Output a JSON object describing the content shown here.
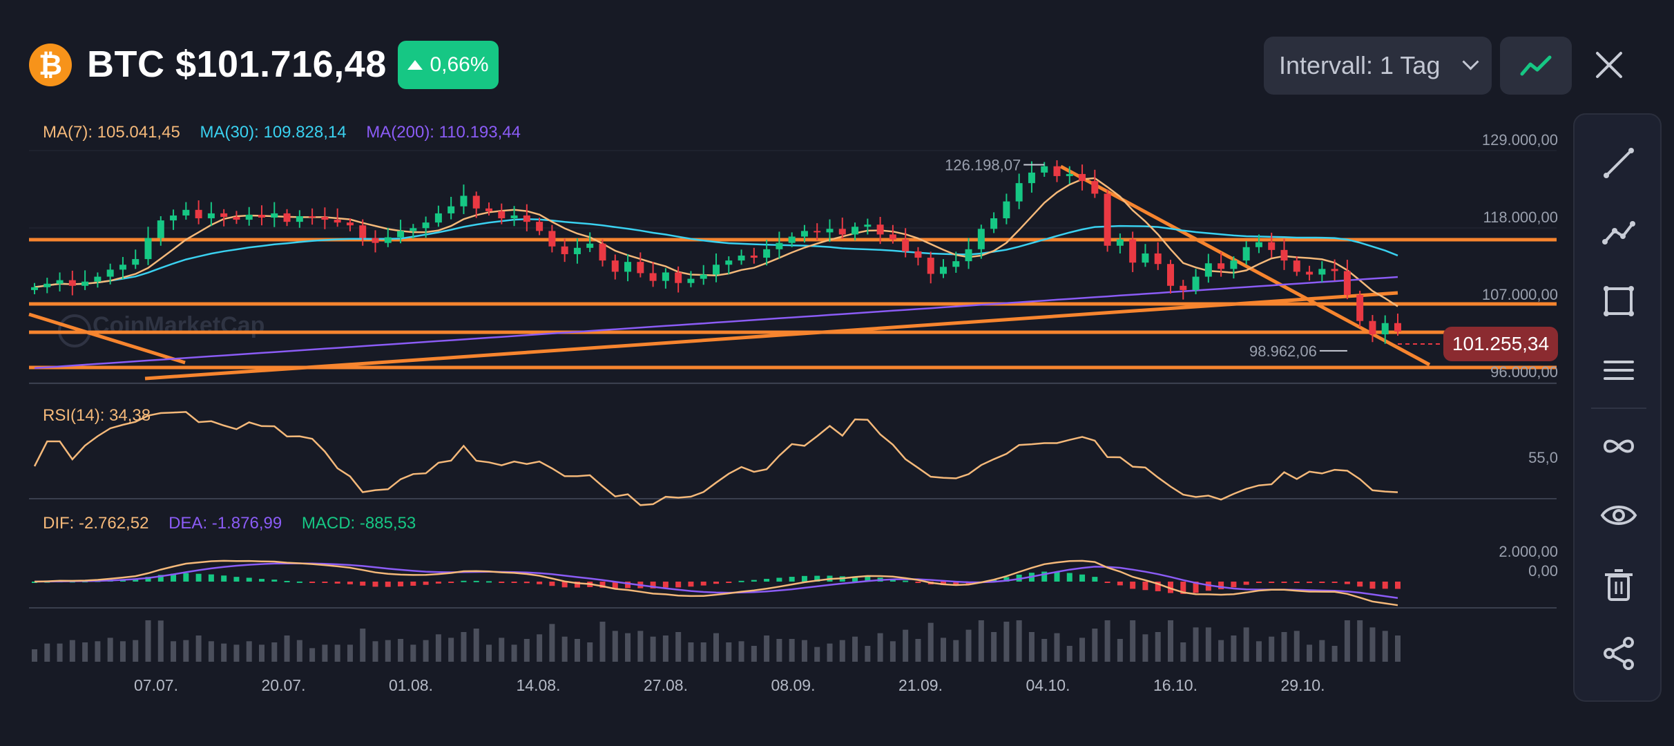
{
  "header": {
    "coin_symbol_glyph": "₿",
    "title": "BTC $101.716,48",
    "change": "0,66%",
    "interval_label": "Intervall: 1 Tag",
    "chart_type_icon": "line-chart-icon",
    "close_icon": "close-icon"
  },
  "colors": {
    "background": "#171a25",
    "up": "#16c784",
    "down": "#ea3943",
    "ma7": "#f5b97a",
    "ma30": "#3ad1f0",
    "ma200": "#8b5cf6",
    "trendline": "#f7852f"
  },
  "legend": {
    "ma7": "MA(7): 105.041,45",
    "ma30": "MA(30): 109.828,14",
    "ma200": "MA(200): 110.193,44",
    "rsi": "RSI(14): 34,38",
    "dif": "DIF: -2.762,52",
    "dea": "DEA: -1.876,99",
    "macd": "MACD: -885,53"
  },
  "price_axis": [
    "129.000,00",
    "118.000,00",
    "107.000,00",
    "96.000,00"
  ],
  "rsi_axis": [
    "55,0"
  ],
  "macd_axis": [
    "2.000,00",
    "0,00"
  ],
  "annotations": {
    "high": "126.198,07",
    "low": "98.962,06",
    "current_price": "101.255,34"
  },
  "dates": [
    "07.07.",
    "20.07.",
    "01.08.",
    "14.08.",
    "27.08.",
    "08.09.",
    "21.09.",
    "04.10.",
    "16.10.",
    "29.10."
  ],
  "watermark": "CoinMarketCap",
  "toolbar": [
    {
      "name": "trend-line-tool",
      "icon": "line-icon"
    },
    {
      "name": "polyline-tool",
      "icon": "polyline-icon"
    },
    {
      "name": "rectangle-tool",
      "icon": "rectangle-icon"
    },
    {
      "name": "parallel-lines-tool",
      "icon": "lines-icon"
    },
    {
      "name": "infinite-line-tool",
      "icon": "infinity-icon"
    },
    {
      "name": "visibility-tool",
      "icon": "eye-icon"
    },
    {
      "name": "delete-tool",
      "icon": "trash-icon"
    },
    {
      "name": "share-tool",
      "icon": "share-icon"
    }
  ],
  "chart_data": {
    "type": "candlestick",
    "price_axis_values": [
      129000,
      118000,
      107000,
      96000
    ],
    "x_dates": [
      "07.07.",
      "20.07.",
      "01.08.",
      "14.08.",
      "27.08.",
      "08.09.",
      "21.09.",
      "04.10.",
      "16.10.",
      "29.10."
    ],
    "close_prices": [
      108000,
      108500,
      109000,
      108200,
      108800,
      109500,
      110500,
      111200,
      112000,
      115000,
      117500,
      118200,
      119000,
      117800,
      118500,
      118000,
      117600,
      118300,
      117900,
      118500,
      117300,
      118100,
      118000,
      117600,
      117200,
      116800,
      115000,
      114300,
      115100,
      116000,
      116400,
      117200,
      118500,
      119500,
      121000,
      119200,
      118800,
      117800,
      118200,
      117300,
      116000,
      113800,
      112700,
      113600,
      114200,
      111800,
      110200,
      111600,
      110000,
      108900,
      110100,
      108600,
      109200,
      109800,
      111200,
      111800,
      112500,
      112200,
      113400,
      114300,
      115200,
      116000,
      115800,
      116300,
      115500,
      116600,
      116900,
      115500,
      114800,
      113100,
      112200,
      109900,
      110900,
      111700,
      113400,
      116300,
      117800,
      120200,
      122800,
      124300,
      125200,
      123800,
      124100,
      123100,
      121300,
      113900,
      114800,
      111500,
      112800,
      111300,
      108200,
      107600,
      109500,
      111400,
      110600,
      111800,
      113700,
      114400,
      113300,
      111800,
      110200,
      109800,
      110600,
      110300,
      106900,
      103200,
      101300,
      102900,
      101700
    ],
    "ma7": 105041.45,
    "ma30": 109828.14,
    "ma200": 110193.44,
    "high_marker": 126198.07,
    "low_marker": 98962.06,
    "current_price": 101255.34,
    "rsi": 34.38,
    "macd": {
      "dif": -2762.52,
      "dea": -1876.99,
      "hist": -885.53
    }
  }
}
